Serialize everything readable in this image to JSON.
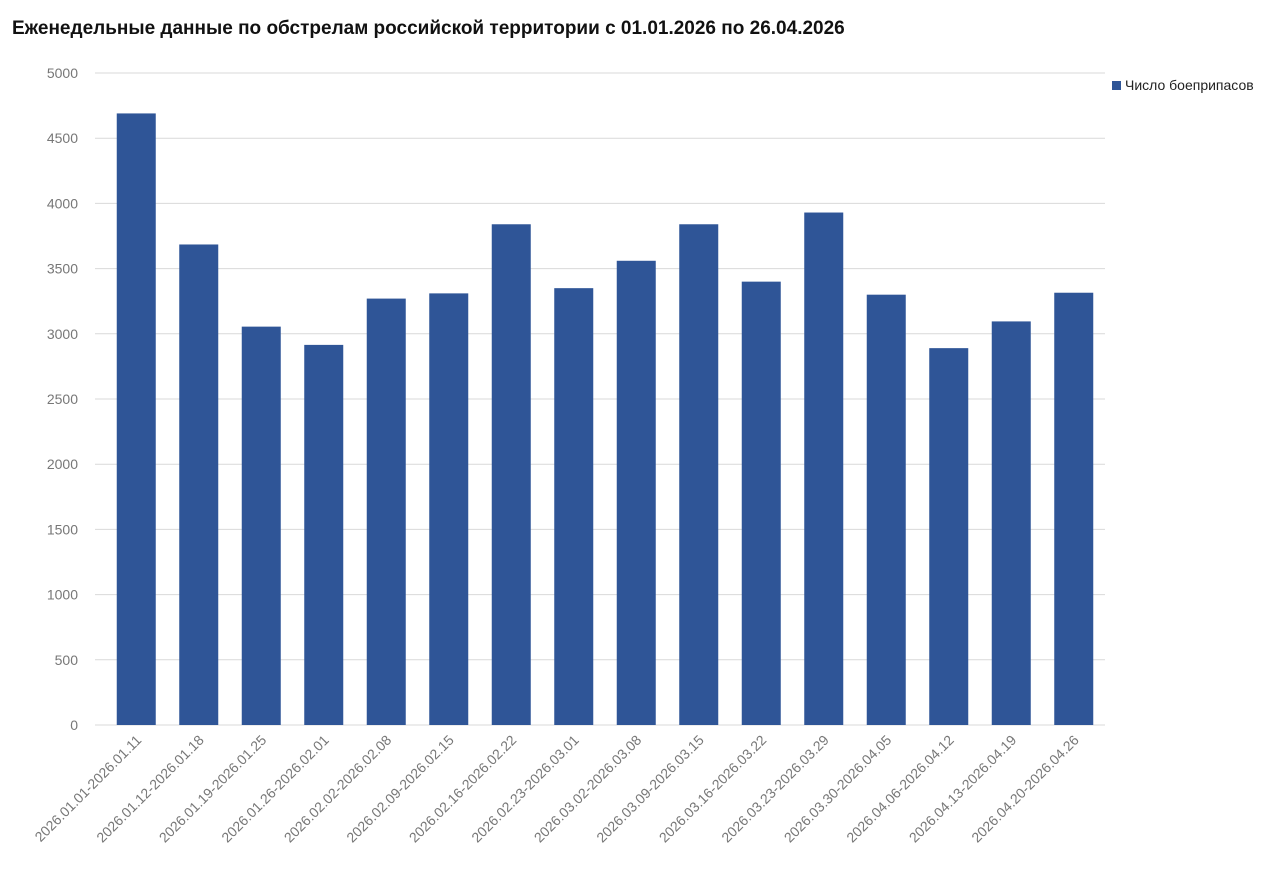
{
  "chart_data": {
    "type": "bar",
    "title": "Еженедельные данные по обстрелам российской территории с 01.01.2026 по 26.04.2026",
    "xlabel": "",
    "ylabel": "",
    "ylim": [
      0,
      5000
    ],
    "yticks": [
      "0",
      "500",
      "1000",
      "1500",
      "2000",
      "2500",
      "3000",
      "3500",
      "4000",
      "4500",
      "5000"
    ],
    "grid": true,
    "legend_position": "top-right",
    "color": "#2f5597",
    "categories": [
      "2026.01.01-2026.01.11",
      "2026.01.12-2026.01.18",
      "2026.01.19-2026.01.25",
      "2026.01.26-2026.02.01",
      "2026.02.02-2026.02.08",
      "2026.02.09-2026.02.15",
      "2026.02.16-2026.02.22",
      "2026.02.23-2026.03.01",
      "2026.03.02-2026.03.08",
      "2026.03.09-2026.03.15",
      "2026.03.16-2026.03.22",
      "2026.03.23-2026.03.29",
      "2026.03.30-2026.04.05",
      "2026.04.06-2026.04.12",
      "2026.04.13-2026.04.19",
      "2026.04.20-2026.04.26"
    ],
    "series": [
      {
        "name": "Число боеприпасов",
        "values": [
          4690,
          3685,
          3055,
          2915,
          3270,
          3310,
          3840,
          3350,
          3560,
          3840,
          3400,
          3930,
          3300,
          2890,
          3095,
          3315
        ]
      }
    ]
  }
}
